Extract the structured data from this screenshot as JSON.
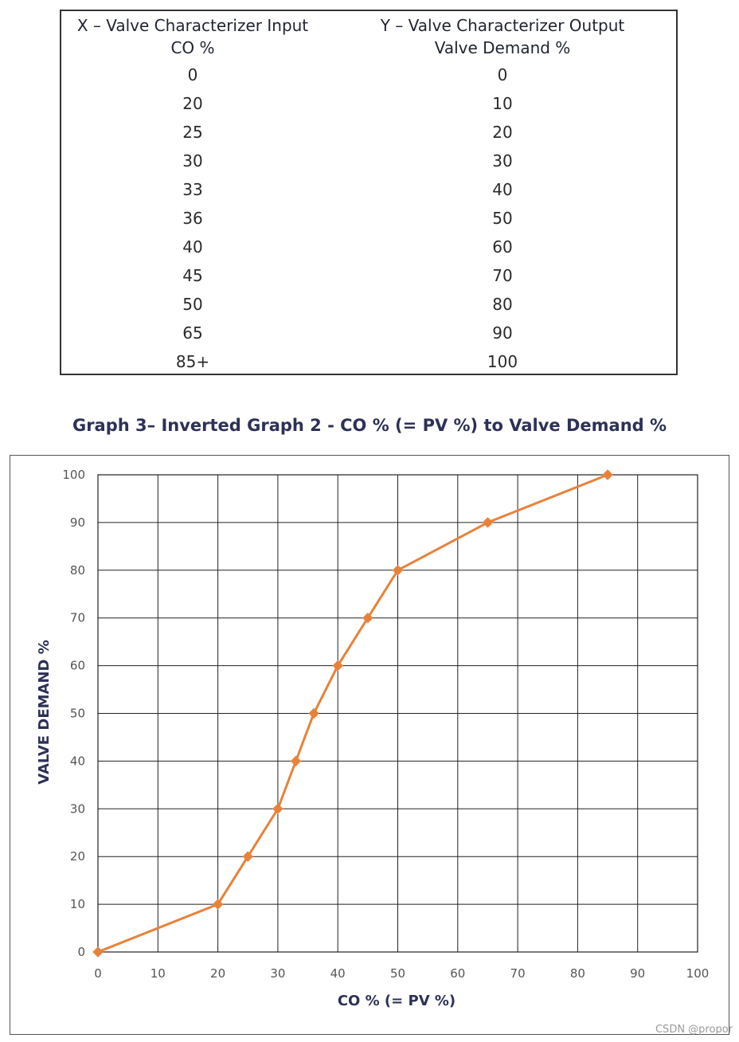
{
  "table": {
    "x_header_line1": "X – Valve Characterizer Input",
    "x_header_line2": "CO %",
    "y_header_line1": "Y – Valve Characterizer Output",
    "y_header_line2": "Valve Demand %",
    "x_values": [
      "0",
      "20",
      "25",
      "30",
      "33",
      "36",
      "40",
      "45",
      "50",
      "65",
      "85+"
    ],
    "y_values": [
      "0",
      "10",
      "20",
      "30",
      "40",
      "50",
      "60",
      "70",
      "80",
      "90",
      "100"
    ]
  },
  "chart_data": {
    "type": "line",
    "title": "Graph 3– Inverted Graph 2 - CO % (= PV %) to Valve Demand %",
    "xlabel": "CO % (= PV %)",
    "ylabel": "VALVE DEMAND %",
    "xlim": [
      0,
      100
    ],
    "ylim": [
      0,
      100
    ],
    "x_ticks": [
      0,
      10,
      20,
      30,
      40,
      50,
      60,
      70,
      80,
      90,
      100
    ],
    "y_ticks": [
      0,
      10,
      20,
      30,
      40,
      50,
      60,
      70,
      80,
      90,
      100
    ],
    "grid": true,
    "series": [
      {
        "x": [
          0,
          20,
          25,
          30,
          33,
          36,
          40,
          45,
          50,
          65,
          85
        ],
        "y": [
          0,
          10,
          20,
          30,
          40,
          50,
          60,
          70,
          80,
          90,
          100
        ],
        "color": "#E8823A",
        "marker": "diamond"
      }
    ]
  },
  "watermark": "CSDN @propor"
}
